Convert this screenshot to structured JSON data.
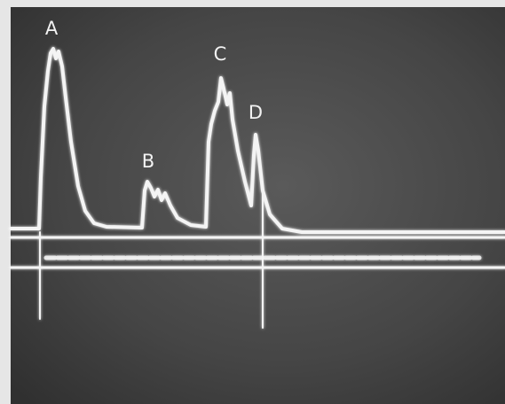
{
  "peaks": [
    {
      "label": "A"
    },
    {
      "label": "B"
    },
    {
      "label": "C"
    },
    {
      "label": "D"
    }
  ]
}
